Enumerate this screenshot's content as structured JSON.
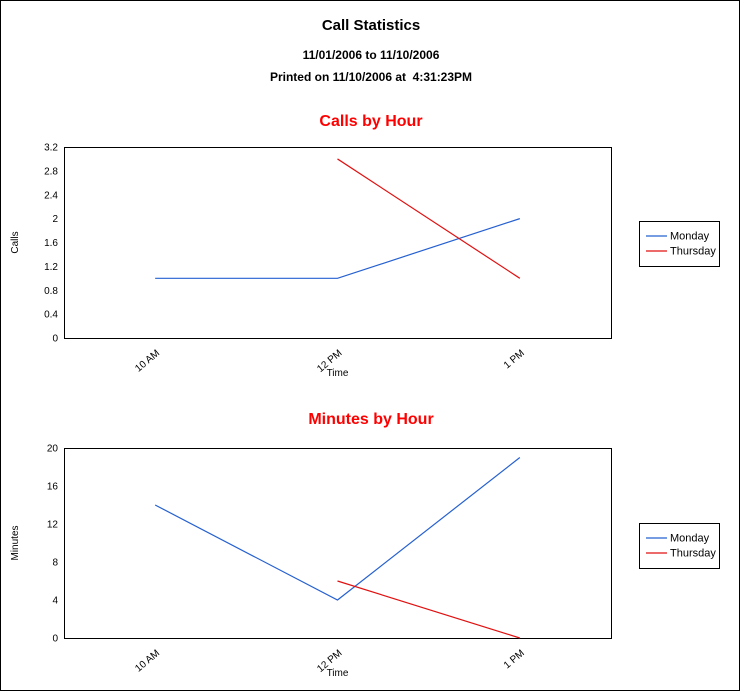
{
  "header": {
    "title": "Call Statistics",
    "date_range": "11/01/2006 to 11/10/2006",
    "printed_line": "Printed on 11/10/2006 at  4:31:23PM"
  },
  "colors": {
    "chart_title_red": "#ff0000",
    "monday_blue": "#2560d0",
    "thursday_red": "#e01010",
    "axis_black": "#000000",
    "background": "#ffffff"
  },
  "chart_data": [
    {
      "type": "line",
      "title": "Calls by Hour",
      "categories": [
        "10 AM",
        "12 PM",
        "1 PM"
      ],
      "series": [
        {
          "name": "Monday",
          "color": "#2560d0",
          "values": [
            1,
            1,
            2
          ]
        },
        {
          "name": "Thursday",
          "color": "#e01010",
          "values": [
            null,
            3,
            1
          ]
        }
      ],
      "xlabel": "Time",
      "ylabel": "Calls",
      "ylim": [
        0,
        3.2
      ],
      "yticks": [
        "0",
        "0.4",
        "0.8",
        "1.2",
        "1.6",
        "2",
        "2.4",
        "2.8",
        "3.2"
      ],
      "legend_position": "right",
      "grid": false
    },
    {
      "type": "line",
      "title": "Minutes by Hour",
      "categories": [
        "10 AM",
        "12 PM",
        "1 PM"
      ],
      "series": [
        {
          "name": "Monday",
          "color": "#2560d0",
          "values": [
            14,
            4,
            19
          ]
        },
        {
          "name": "Thursday",
          "color": "#e01010",
          "values": [
            null,
            6,
            0
          ]
        }
      ],
      "xlabel": "Time",
      "ylabel": "Minutes",
      "ylim": [
        0,
        20
      ],
      "yticks": [
        "0",
        "4",
        "8",
        "12",
        "16",
        "20"
      ],
      "legend_position": "right",
      "grid": false
    }
  ]
}
